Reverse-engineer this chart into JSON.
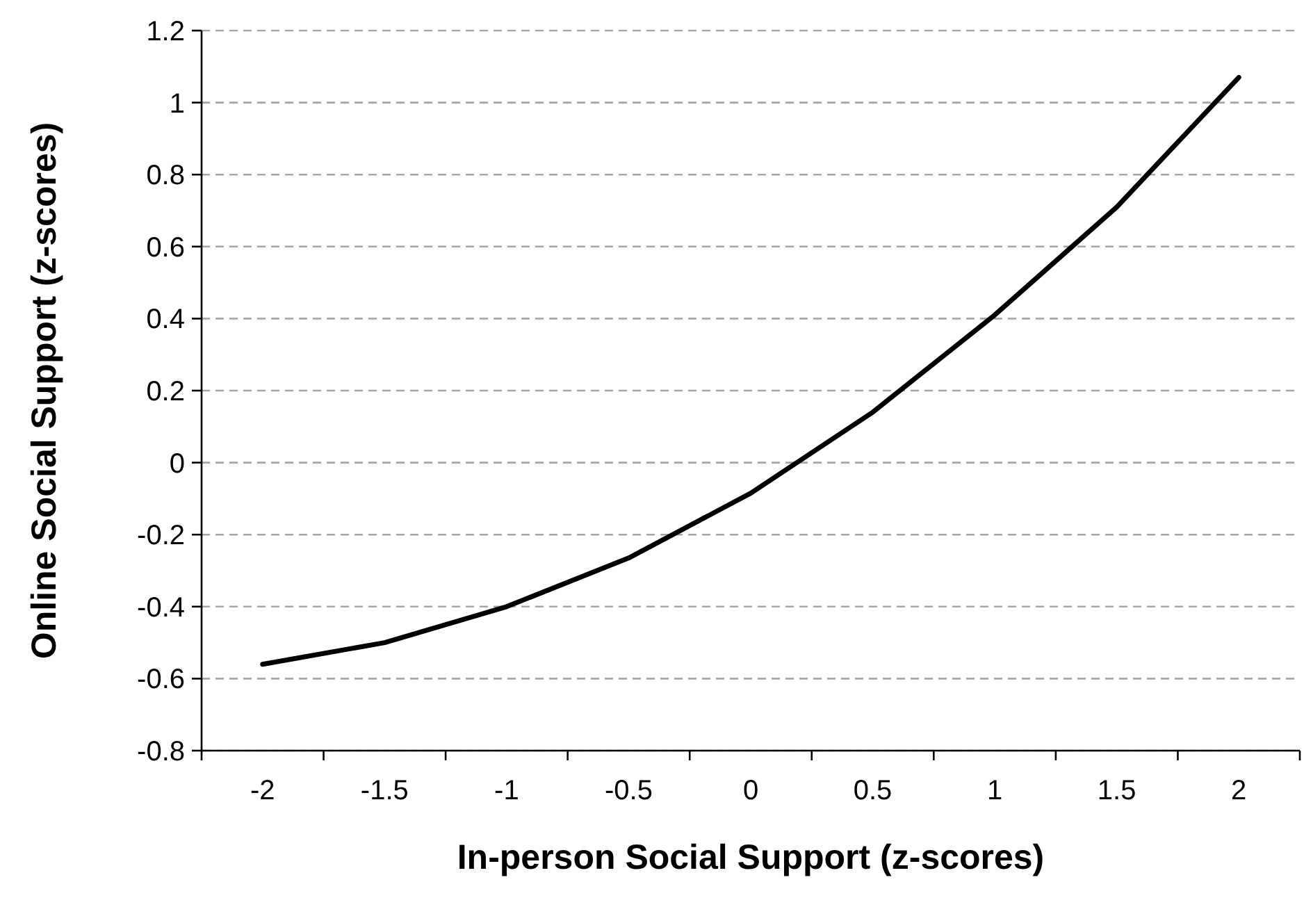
{
  "chart_data": {
    "type": "line",
    "xlabel": "In-person Social Support (z-scores)",
    "ylabel": "Online Social Support (z-scores)",
    "categories": [
      "-2",
      "-1.5",
      "-1",
      "-0.5",
      "0",
      "0.5",
      "1",
      "1.5",
      "2"
    ],
    "series": [
      {
        "color": "#000000",
        "values": [
          -0.56,
          -0.5,
          -0.4,
          -0.265,
          -0.085,
          0.14,
          0.41,
          0.71,
          1.07
        ]
      }
    ],
    "ylim": [
      -0.8,
      1.2
    ],
    "yticks": [
      -0.8,
      -0.6,
      -0.4,
      -0.2,
      0,
      0.2,
      0.4,
      0.6,
      0.8,
      1,
      1.2
    ],
    "grid": "y",
    "marker": "none",
    "line_style": "solid"
  }
}
